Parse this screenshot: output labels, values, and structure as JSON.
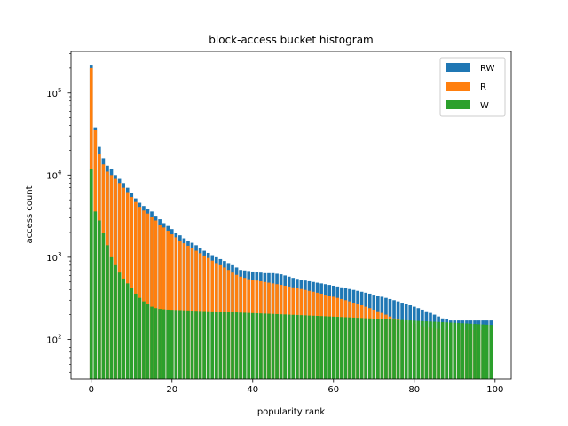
{
  "chart_data": {
    "type": "bar",
    "stacked": true,
    "title": "block-access bucket histogram",
    "xlabel": "popularity rank",
    "ylabel": "access count",
    "yscale": "log",
    "xlim": [
      -5,
      104
    ],
    "ylim": [
      33,
      320000
    ],
    "xticks": [
      "0",
      "20",
      "40",
      "60",
      "80",
      "100"
    ],
    "yticks": [
      {
        "base": "10",
        "exp": "2"
      },
      {
        "base": "10",
        "exp": "3"
      },
      {
        "base": "10",
        "exp": "4"
      },
      {
        "base": "10",
        "exp": "5"
      }
    ],
    "legend": {
      "position": "top-right"
    },
    "grid": false,
    "x": [
      0,
      1,
      2,
      3,
      4,
      5,
      6,
      7,
      8,
      9,
      10,
      11,
      12,
      13,
      14,
      15,
      16,
      17,
      18,
      19,
      20,
      21,
      22,
      23,
      24,
      25,
      26,
      27,
      28,
      29,
      30,
      31,
      32,
      33,
      34,
      35,
      36,
      37,
      38,
      39,
      40,
      41,
      42,
      43,
      44,
      45,
      46,
      47,
      48,
      49,
      50,
      51,
      52,
      53,
      54,
      55,
      56,
      57,
      58,
      59,
      60,
      61,
      62,
      63,
      64,
      65,
      66,
      67,
      68,
      69,
      70,
      71,
      72,
      73,
      74,
      75,
      76,
      77,
      78,
      79,
      80,
      81,
      82,
      83,
      84,
      85,
      86,
      87,
      88,
      89,
      90,
      91,
      92,
      93,
      94,
      95,
      96,
      97,
      98,
      99
    ],
    "series": [
      {
        "name": "RW",
        "color": "#1f77b4",
        "values": [
          220000,
          38000,
          22000,
          16000,
          13000,
          12000,
          10000,
          9000,
          8000,
          7000,
          6000,
          5200,
          4600,
          4200,
          3900,
          3600,
          3200,
          2900,
          2600,
          2400,
          2200,
          2000,
          1850,
          1700,
          1600,
          1500,
          1400,
          1300,
          1200,
          1130,
          1060,
          1000,
          950,
          900,
          850,
          800,
          750,
          700,
          690,
          680,
          670,
          660,
          650,
          640,
          640,
          640,
          630,
          620,
          600,
          580,
          560,
          545,
          530,
          520,
          510,
          500,
          490,
          480,
          470,
          460,
          450,
          440,
          430,
          420,
          410,
          400,
          390,
          380,
          370,
          360,
          350,
          340,
          330,
          320,
          310,
          300,
          290,
          280,
          270,
          260,
          250,
          240,
          230,
          220,
          210,
          200,
          190,
          180,
          175,
          170,
          170,
          170,
          170,
          170,
          170,
          170,
          170,
          170,
          170,
          170
        ]
      },
      {
        "name": "R",
        "color": "#ff7f0e",
        "values": [
          200000,
          35000,
          18000,
          13500,
          11000,
          10000,
          9000,
          8000,
          7000,
          6200,
          5400,
          4700,
          4100,
          3700,
          3400,
          3100,
          2800,
          2500,
          2300,
          2100,
          1900,
          1750,
          1600,
          1480,
          1380,
          1290,
          1200,
          1120,
          1050,
          980,
          910,
          850,
          800,
          750,
          700,
          650,
          610,
          580,
          560,
          540,
          530,
          520,
          510,
          500,
          490,
          480,
          470,
          460,
          450,
          440,
          430,
          420,
          410,
          400,
          390,
          380,
          370,
          360,
          350,
          340,
          330,
          320,
          310,
          300,
          290,
          280,
          270,
          260,
          250,
          240,
          230,
          220,
          210,
          200,
          190,
          180,
          175,
          170,
          165,
          160,
          155,
          150,
          145,
          140,
          138,
          136,
          134,
          132,
          131,
          130,
          130,
          130,
          130,
          130,
          130,
          130,
          130,
          130,
          130,
          130
        ]
      },
      {
        "name": "W",
        "color": "#2ca02c",
        "values": [
          12000,
          3600,
          2800,
          2000,
          1400,
          1000,
          800,
          650,
          550,
          480,
          420,
          360,
          320,
          290,
          270,
          250,
          240,
          235,
          232,
          230,
          229,
          228,
          227,
          226,
          225,
          224,
          223,
          222,
          221,
          220,
          219,
          218,
          217,
          216,
          215,
          214,
          213,
          212,
          211,
          210,
          209,
          208,
          207,
          206,
          205,
          204,
          203,
          202,
          201,
          200,
          199,
          198,
          197,
          196,
          195,
          194,
          193,
          192,
          191,
          190,
          189,
          188,
          187,
          186,
          185,
          184,
          183,
          182,
          181,
          180,
          179,
          178,
          177,
          176,
          175,
          174,
          173,
          172,
          171,
          170,
          169,
          168,
          167,
          166,
          165,
          164,
          163,
          162,
          161,
          160,
          159,
          158,
          157,
          156,
          155,
          154,
          153,
          152,
          151,
          150
        ]
      }
    ]
  }
}
